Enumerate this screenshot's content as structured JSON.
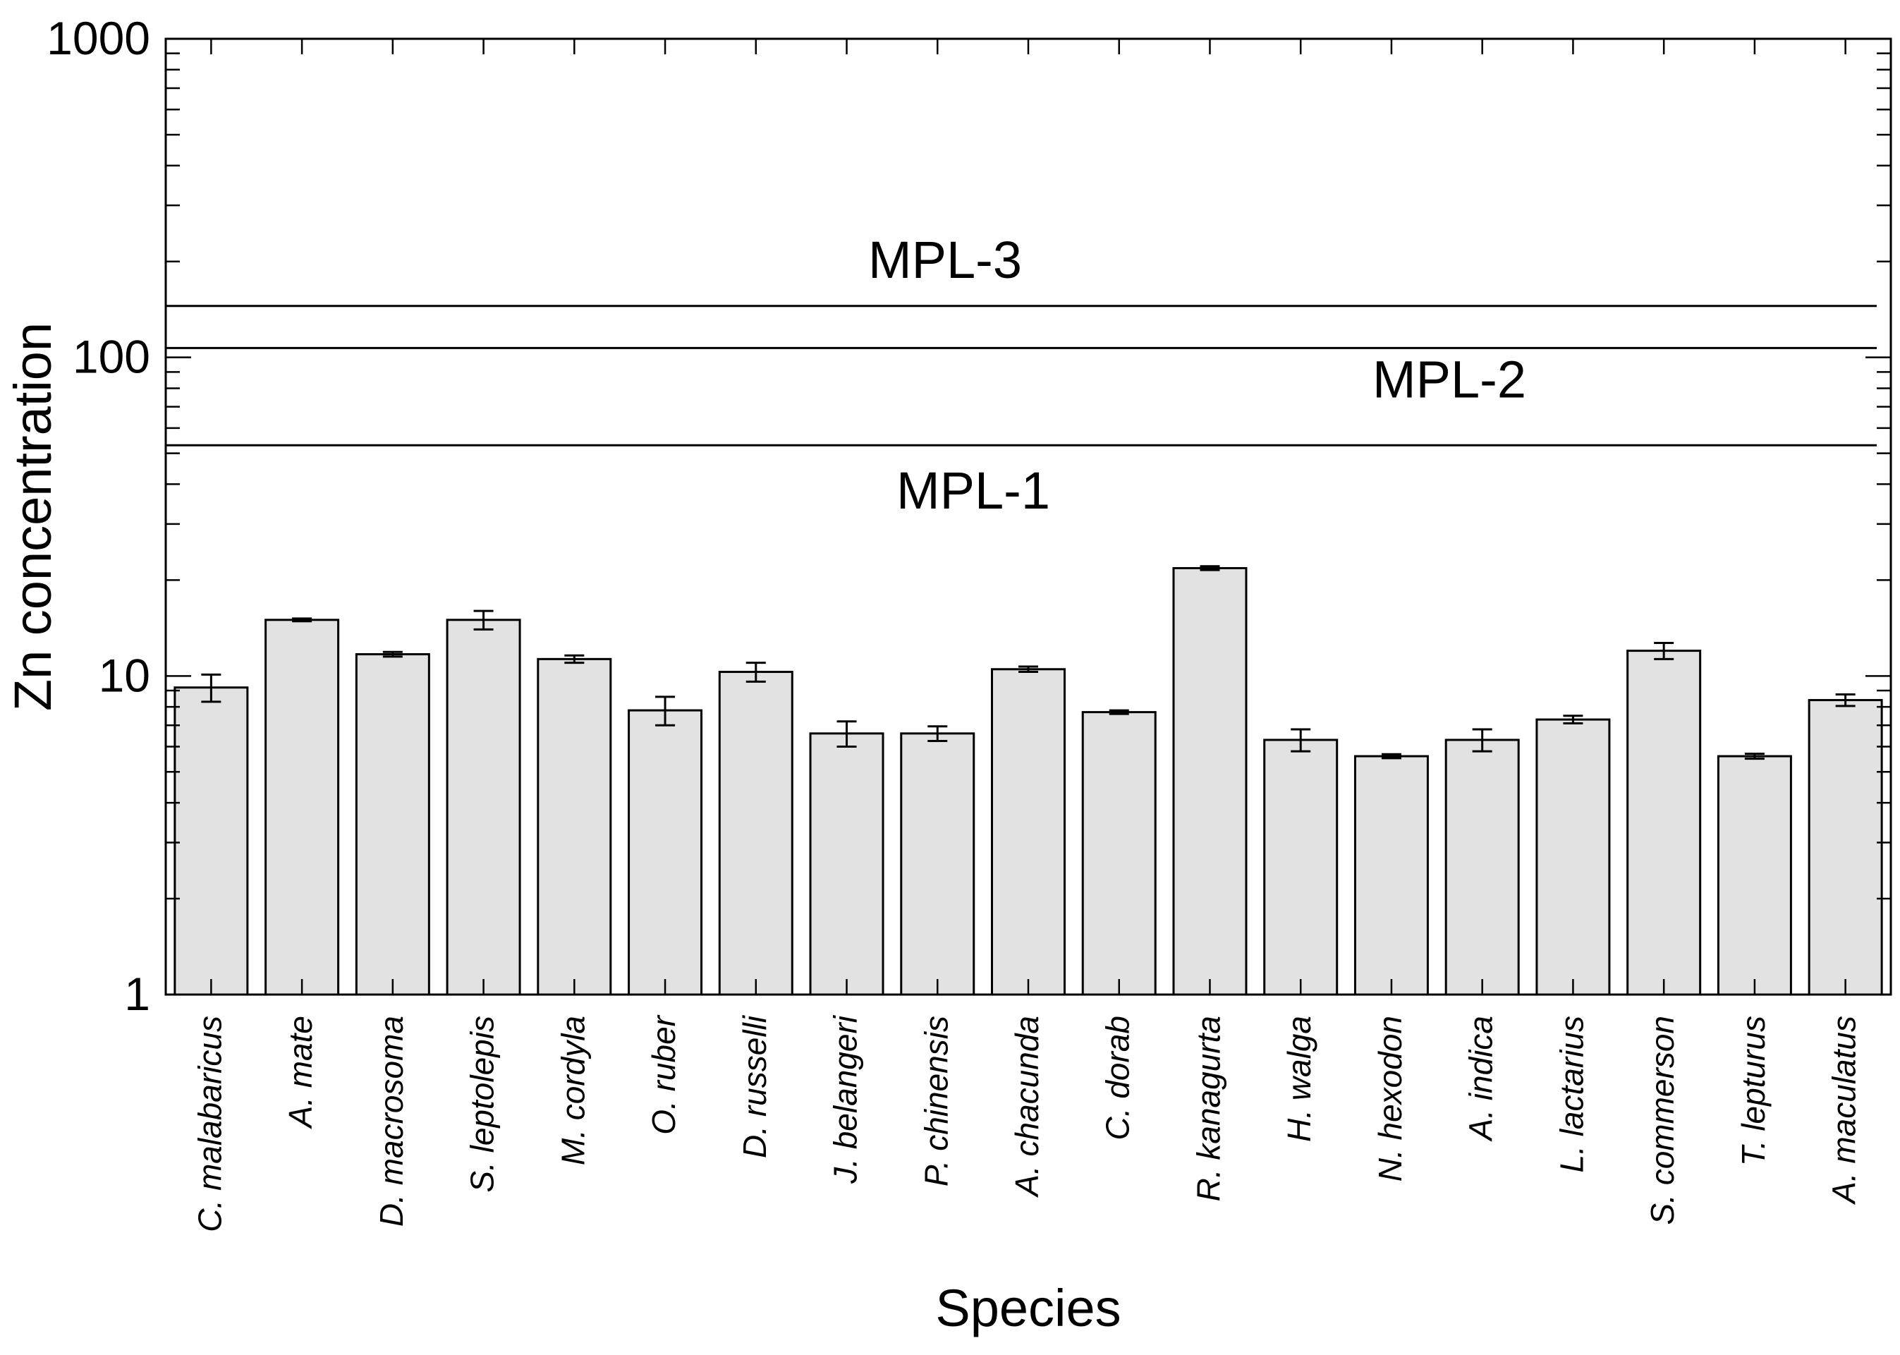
{
  "chart_data": {
    "type": "bar",
    "title": "",
    "xlabel": "Species",
    "ylabel": "Zn concentration",
    "yscale": "log",
    "ylim": [
      1,
      1000
    ],
    "yticks": [
      {
        "value": 1,
        "label": "1"
      },
      {
        "value": 10,
        "label": "10"
      },
      {
        "value": 100,
        "label": "100"
      },
      {
        "value": 1000,
        "label": "1000"
      }
    ],
    "categories": [
      "C. malabaricus",
      "A. mate",
      "D. macrosoma",
      "S. leptolepis",
      "M. cordyla",
      "O. ruber",
      "D. russelli",
      "J. belangeri",
      "P. chinensis",
      "A. chacunda",
      "C. dorab",
      "R. kanagurta",
      "H. walga",
      "N. hexodon",
      "A. indica",
      "L. lactarius",
      "S. commerson",
      "T. lepturus",
      "A. maculatus"
    ],
    "values": [
      9.2,
      15.0,
      11.7,
      15.0,
      11.3,
      7.8,
      10.3,
      6.6,
      6.6,
      10.5,
      7.7,
      21.8,
      6.3,
      5.6,
      6.3,
      7.3,
      12.0,
      5.6,
      8.4
    ],
    "errors": [
      0.9,
      0.15,
      0.2,
      1.0,
      0.3,
      0.8,
      0.7,
      0.6,
      0.35,
      0.2,
      0.1,
      0.3,
      0.5,
      0.08,
      0.5,
      0.2,
      0.7,
      0.1,
      0.35
    ],
    "reference_lines": [
      {
        "name": "MPL-3",
        "value": 145
      },
      {
        "name": "MPL-2",
        "value": 107
      },
      {
        "name": "MPL-1",
        "value": 53
      }
    ],
    "grid": false,
    "colors": {
      "bar_fill": "#e2e2e2",
      "stroke": "#000000"
    }
  }
}
